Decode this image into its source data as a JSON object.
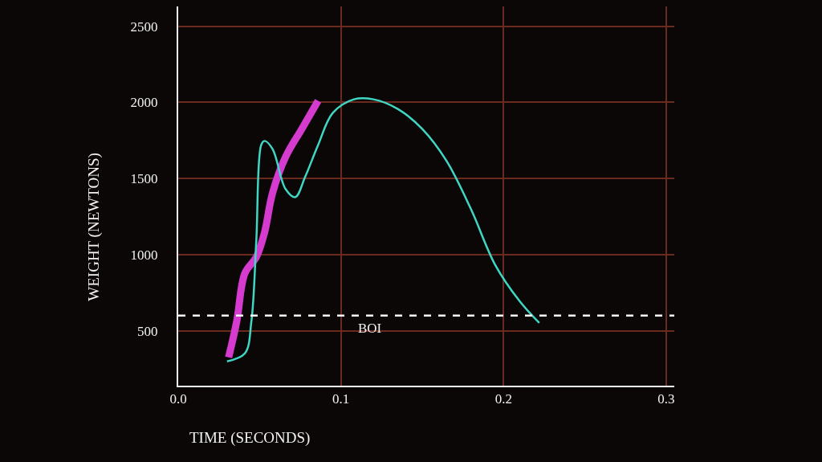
{
  "chart_data": {
    "type": "line",
    "xlabel": "TIME (SECONDS)",
    "ylabel": "WEIGHT (NEWTONS)",
    "xlim": [
      0,
      0.305
    ],
    "ylim": [
      140,
      2630
    ],
    "xticks": [
      {
        "value": 0,
        "label": "0.0"
      },
      0.1,
      0.2,
      0.3
    ],
    "yticks": [
      500,
      1000,
      1500,
      2000,
      2500
    ],
    "grid": true,
    "series": [
      {
        "color": "#d63bd0",
        "x": [
          0.031,
          0.036,
          0.041,
          0.048,
          0.053,
          0.058,
          0.066,
          0.076,
          0.086
        ],
        "values": [
          326,
          563,
          879,
          984,
          1142,
          1405,
          1641,
          1826,
          2010
        ]
      },
      {
        "color": "#3fd6c4",
        "x": [
          0.03,
          0.041,
          0.045,
          0.048,
          0.051,
          0.053,
          0.058,
          0.066,
          0.072,
          0.078,
          0.086,
          0.095,
          0.108,
          0.12,
          0.135,
          0.15,
          0.165,
          0.18,
          0.195,
          0.21,
          0.222
        ],
        "values": [
          300,
          352,
          563,
          1089,
          1720,
          1747,
          1694,
          1431,
          1378,
          1510,
          1720,
          1930,
          2020,
          2020,
          1957,
          1826,
          1615,
          1299,
          931,
          694,
          552
        ]
      }
    ],
    "ref_lines": [
      {
        "axis": "y",
        "value": 600,
        "label": "BOI",
        "color": "#ffffff",
        "line_style": "dashed"
      }
    ]
  }
}
